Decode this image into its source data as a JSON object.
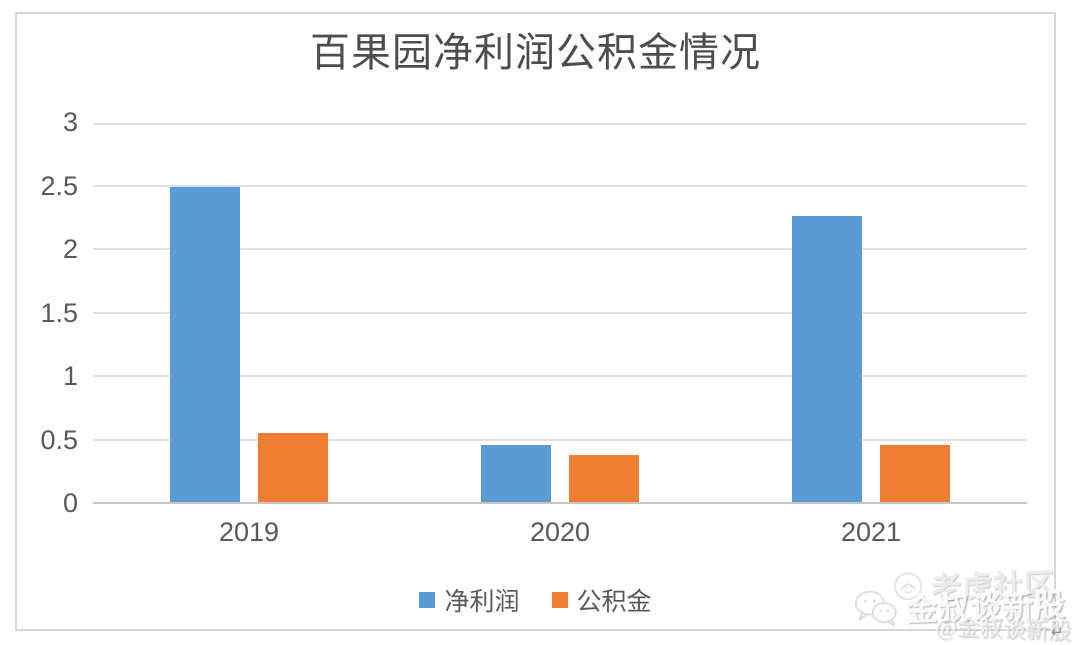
{
  "chart_data": {
    "type": "bar",
    "title": "百果园净利润公积金情况",
    "categories": [
      "2019",
      "2020",
      "2021"
    ],
    "series": [
      {
        "name": "净利润",
        "color": "#5b9bd5",
        "values": [
          2.48,
          0.45,
          2.25
        ]
      },
      {
        "name": "公积金",
        "color": "#ed7d31",
        "values": [
          0.54,
          0.37,
          0.45
        ]
      }
    ],
    "xlabel": "",
    "ylabel": "",
    "ylim": [
      0,
      3
    ],
    "yticks": [
      0,
      0.5,
      1,
      1.5,
      2,
      2.5,
      3
    ],
    "ytick_labels": [
      "0",
      "0.5",
      "1",
      "1.5",
      "2",
      "2.5",
      "3"
    ],
    "grid": true,
    "legend_position": "bottom"
  },
  "watermark": {
    "community": "老虎社区",
    "account": "金叔谈新股",
    "handle": "@金叔谈新股",
    "return_mark": "↵"
  }
}
